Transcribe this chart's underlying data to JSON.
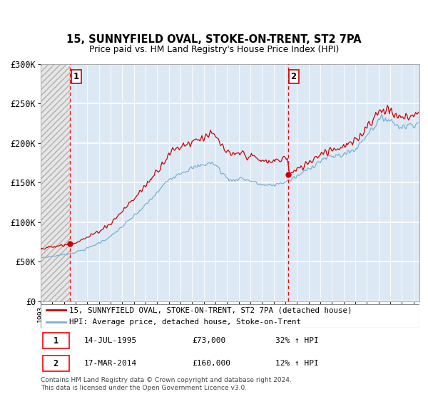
{
  "title": "15, SUNNYFIELD OVAL, STOKE-ON-TRENT, ST2 7PA",
  "subtitle": "Price paid vs. HM Land Registry's House Price Index (HPI)",
  "legend_line1": "15, SUNNYFIELD OVAL, STOKE-ON-TRENT, ST2 7PA (detached house)",
  "legend_line2": "HPI: Average price, detached house, Stoke-on-Trent",
  "footnote": "Contains HM Land Registry data © Crown copyright and database right 2024.\nThis data is licensed under the Open Government Licence v3.0.",
  "sale1_date": "14-JUL-1995",
  "sale1_price": "£73,000",
  "sale1_hpi": "32% ↑ HPI",
  "sale2_date": "17-MAR-2014",
  "sale2_price": "£160,000",
  "sale2_hpi": "12% ↑ HPI",
  "sale1_year": 1995.54,
  "sale1_value": 73000,
  "sale2_year": 2014.21,
  "sale2_value": 160000,
  "hpi_color": "#7bafd4",
  "price_color": "#cc0000",
  "marker_color": "#cc0000",
  "dashed_color": "#ff0000",
  "hatch_bg_color": "#d8d8d8",
  "blue_bg_color": "#dce9f5",
  "ylim": [
    0,
    300000
  ],
  "xlim_start": 1993.0,
  "xlim_end": 2025.5,
  "yticks": [
    0,
    50000,
    100000,
    150000,
    200000,
    250000,
    300000
  ],
  "ytick_labels": [
    "£0",
    "£50K",
    "£100K",
    "£150K",
    "£200K",
    "£250K",
    "£300K"
  ]
}
